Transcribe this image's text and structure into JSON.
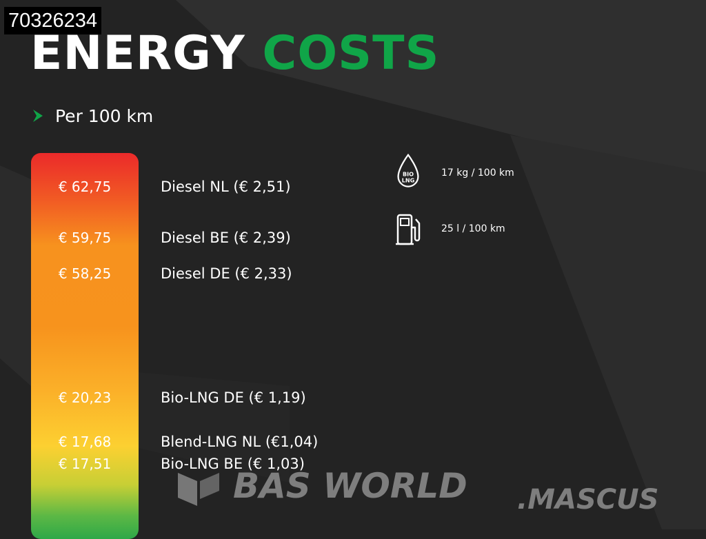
{
  "listing_id": "70326234",
  "title": {
    "word1": "ENERGY",
    "word2": "COSTS"
  },
  "subtitle": "Per 100 km",
  "rows": [
    {
      "price": "€ 62,75",
      "fuel": "Diesel NL (€ 2,51)"
    },
    {
      "price": "€ 59,75",
      "fuel": "Diesel BE (€ 2,39)"
    },
    {
      "price": "€ 58,25",
      "fuel": "Diesel DE (€ 2,33)"
    },
    {
      "price": "€ 20,23",
      "fuel": "Bio-LNG DE (€ 1,19)"
    },
    {
      "price": "€ 17,68",
      "fuel": "Blend-LNG NL (€1,04)"
    },
    {
      "price": "€ 17,51",
      "fuel": "Bio-LNG BE (€ 1,03)"
    }
  ],
  "consumption": [
    {
      "icon": "bio-lng-drop-icon",
      "icon_text_top": "BIO",
      "icon_text_bottom": "LNG",
      "text": "17 kg / 100 km"
    },
    {
      "icon": "fuel-pump-icon",
      "text": "25 l / 100 km"
    }
  ],
  "watermark": {
    "brand": "BAS WORLD",
    "partner": ".MASCUS"
  },
  "colors": {
    "background": "#232323",
    "accent_green": "#10a548",
    "gradient_top": "#eb2a2a",
    "gradient_mid": "#f7931d",
    "gradient_bottom": "#2ea848"
  }
}
